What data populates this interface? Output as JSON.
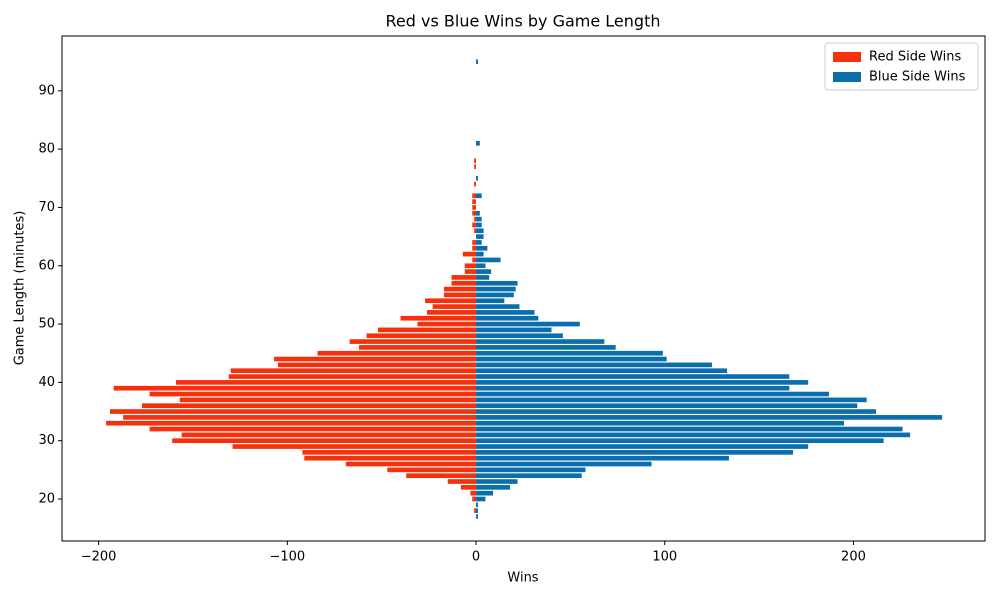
{
  "chart_data": {
    "type": "barh",
    "title": "Red vs Blue Wins by Game Length",
    "xlabel": "Wins",
    "ylabel": "Game Length (minutes)",
    "y": [
      17,
      18,
      19,
      20,
      21,
      22,
      23,
      24,
      25,
      26,
      27,
      28,
      29,
      30,
      31,
      32,
      33,
      34,
      35,
      36,
      37,
      38,
      39,
      40,
      41,
      42,
      43,
      44,
      45,
      46,
      47,
      48,
      49,
      50,
      51,
      52,
      53,
      54,
      55,
      56,
      57,
      58,
      59,
      60,
      61,
      62,
      63,
      64,
      65,
      66,
      67,
      68,
      69,
      70,
      71,
      72,
      73,
      74,
      75,
      76,
      77,
      78,
      81,
      95
    ],
    "series": [
      {
        "name": "Red Side Wins",
        "color": "#f5300c",
        "values": [
          0,
          -1,
          0,
          -2,
          -3,
          -8,
          -15,
          -37,
          -47,
          -69,
          -91,
          -92,
          -129,
          -161,
          -156,
          -173,
          -196,
          -187,
          -194,
          -177,
          -157,
          -173,
          -192,
          -159,
          -131,
          -130,
          -105,
          -107,
          -84,
          -62,
          -67,
          -58,
          -52,
          -31,
          -40,
          -26,
          -23,
          -27,
          -17,
          -17,
          -13,
          -13,
          -6,
          -6,
          -2,
          -7,
          -2,
          -2,
          0,
          -1,
          -2,
          -1,
          -2,
          -2,
          -2,
          -2,
          0,
          -1,
          0,
          0,
          -1,
          -1,
          0,
          0
        ]
      },
      {
        "name": "Blue Side Wins",
        "color": "#0a6ead",
        "values": [
          1,
          1,
          1,
          5,
          9,
          18,
          22,
          56,
          58,
          93,
          134,
          168,
          176,
          216,
          230,
          226,
          195,
          247,
          212,
          202,
          207,
          187,
          166,
          176,
          166,
          133,
          125,
          101,
          99,
          74,
          68,
          46,
          40,
          55,
          33,
          31,
          23,
          15,
          20,
          21,
          22,
          7,
          8,
          5,
          13,
          4,
          6,
          3,
          4,
          4,
          3,
          3,
          2,
          0,
          0,
          3,
          0,
          0,
          1,
          0,
          0,
          0,
          2,
          1
        ]
      }
    ],
    "xlim": [
      -219.4,
      269.7
    ],
    "ylim": [
      12.8,
      99.4
    ],
    "xticks": [
      {
        "value": -200,
        "label": "−200"
      },
      {
        "value": -100,
        "label": "−100"
      },
      0,
      100,
      200
    ],
    "yticks": [
      20,
      30,
      40,
      50,
      60,
      70,
      80,
      90
    ],
    "legend": "upper-right"
  }
}
